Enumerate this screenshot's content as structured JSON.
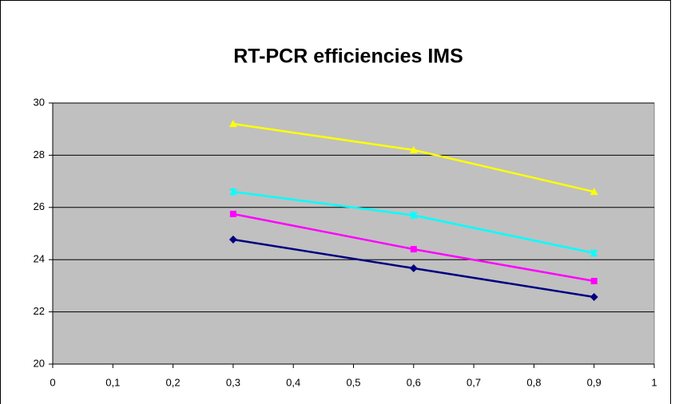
{
  "chart_data": {
    "type": "line",
    "title": "RT-PCR efficiencies  IMS",
    "x": [
      0.3,
      0.6,
      0.9
    ],
    "series": [
      {
        "color": "#ffff00",
        "marker": "triangle",
        "values": [
          29.2,
          28.2,
          26.6
        ]
      },
      {
        "color": "#00ffff",
        "marker": "star",
        "values": [
          26.6,
          25.7,
          24.25
        ]
      },
      {
        "color": "#ff00ff",
        "marker": "square",
        "values": [
          25.75,
          24.4,
          23.18
        ]
      },
      {
        "color": "#000080",
        "marker": "diamond",
        "values": [
          24.77,
          23.67,
          22.57
        ]
      }
    ],
    "xlim": [
      0,
      1
    ],
    "xticks": [
      0,
      {
        "value": 0.1,
        "label": "0,1"
      },
      {
        "value": 0.2,
        "label": "0,2"
      },
      {
        "value": 0.3,
        "label": "0,3"
      },
      {
        "value": 0.4,
        "label": "0,4"
      },
      {
        "value": 0.5,
        "label": "0,5"
      },
      {
        "value": 0.6,
        "label": "0,6"
      },
      {
        "value": 0.7,
        "label": "0,7"
      },
      {
        "value": 0.8,
        "label": "0,8"
      },
      {
        "value": 0.9,
        "label": "0,9"
      },
      1
    ],
    "ylim": [
      20,
      30
    ],
    "yticks": [
      20,
      22,
      24,
      26,
      28,
      30
    ],
    "grid": true
  }
}
